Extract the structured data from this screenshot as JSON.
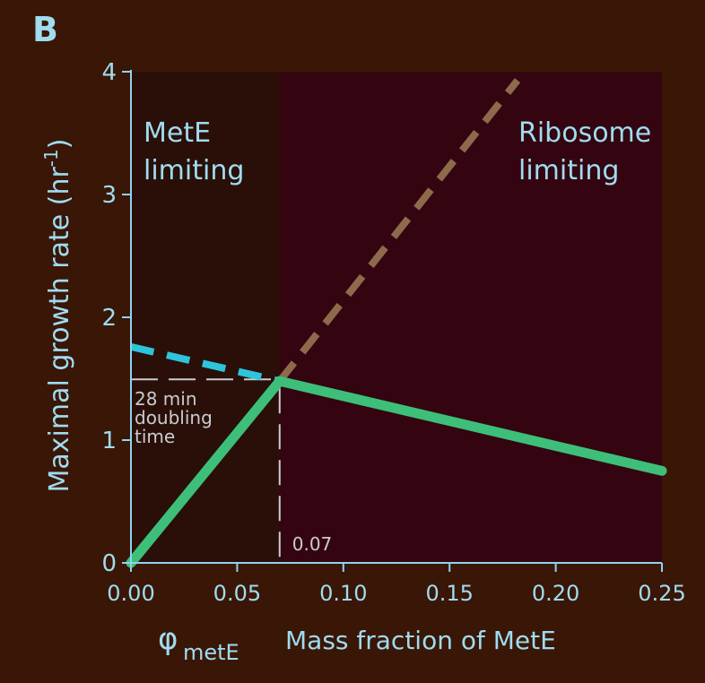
{
  "panel_label": "B",
  "colors": {
    "background": "#3a1606",
    "axis": "#8fd3ee",
    "text": "#9fdcf0",
    "region_mete": "#2a0f08",
    "region_ribosome": "#340510",
    "growth_line": "#3dbf7a",
    "dashed_cyan": "#2ec4dc",
    "dashed_brown": "#8e6a4c",
    "annotation": "#c8ccd0"
  },
  "chart_data": {
    "type": "line",
    "xlabel_symbol": "φ",
    "xlabel_subscript": "metE",
    "xlabel": "Mass fraction of MetE",
    "ylabel": "Maximal growth rate (hr",
    "ylabel_sup": "-1",
    "ylabel_close": ")",
    "xlim": [
      0,
      0.25
    ],
    "ylim": [
      0,
      4
    ],
    "x_ticks": [
      0.0,
      0.05,
      0.1,
      0.15,
      0.2,
      0.25
    ],
    "x_tick_labels": [
      "0.00",
      "0.05",
      "0.10",
      "0.15",
      "0.20",
      "0.25"
    ],
    "y_ticks": [
      0,
      1,
      2,
      3,
      4
    ],
    "y_tick_labels": [
      "0",
      "1",
      "2",
      "3",
      "4"
    ],
    "regions": [
      {
        "x_range": [
          0,
          0.07
        ],
        "label_lines": [
          "MetE",
          "limiting"
        ]
      },
      {
        "x_range": [
          0.07,
          0.25
        ],
        "label_lines": [
          "Ribosome",
          "limiting"
        ]
      }
    ],
    "series": [
      {
        "style": "solid",
        "color_key": "growth_line",
        "points": [
          [
            0,
            0
          ],
          [
            0.07,
            1.48
          ],
          [
            0.25,
            0.75
          ]
        ]
      },
      {
        "style": "dashed",
        "color_key": "dashed_cyan",
        "points": [
          [
            0,
            1.76
          ],
          [
            0.07,
            1.48
          ]
        ]
      },
      {
        "style": "dashed",
        "color_key": "dashed_brown",
        "points": [
          [
            0.07,
            1.48
          ],
          [
            0.182,
            3.93
          ]
        ]
      }
    ],
    "annotations": {
      "crossover_x": 0.07,
      "crossover_label": "0.07",
      "doubling_lines": [
        "28 min",
        "doubling",
        "time"
      ]
    }
  }
}
